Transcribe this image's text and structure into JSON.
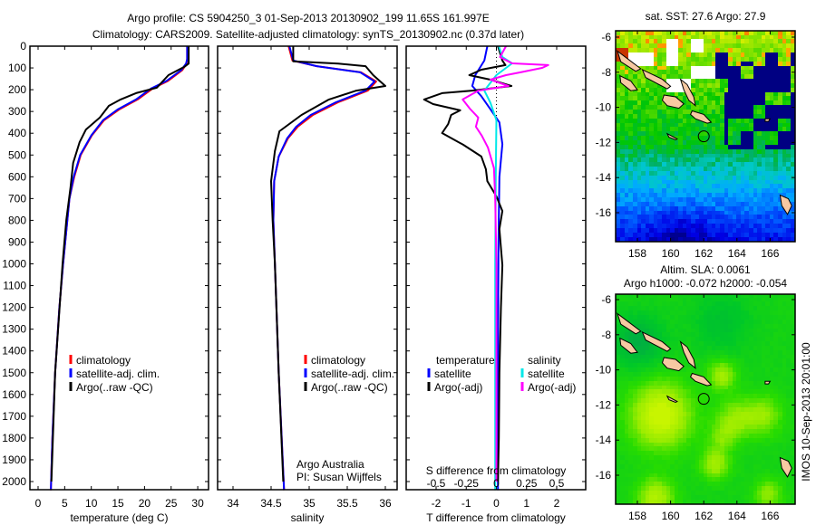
{
  "title": {
    "line1": "Argo profile: CS 5904250_3 01-Sep-2013 20130902_199 11.65S 161.997E",
    "line2": "Climatology: CARS2009. Satellite-adjusted climatology: synTS_20130902.nc (0.37d later)"
  },
  "depth_ticks": [
    "0",
    "100",
    "200",
    "300",
    "400",
    "500",
    "600",
    "700",
    "800",
    "900",
    "1000",
    "1100",
    "1200",
    "1300",
    "1400",
    "1500",
    "1600",
    "1700",
    "1800",
    "1900",
    "2000"
  ],
  "legend_profiles": {
    "climatology": "climatology",
    "satellite": "satellite-adj. clim.",
    "argo": "Argo(..raw -QC)"
  },
  "legend_diff": {
    "temperature": "temperature",
    "salinity": "salinity",
    "t_satellite": "satellite",
    "t_argo": "Argo(-adj)",
    "s_satellite": "satellite",
    "s_argo": "Argo(-adj)"
  },
  "credits": {
    "line1": "Argo Australia",
    "line2": "PI: Susan Wijffels"
  },
  "timestamp": "IMOS 10-Sep-2013 20:01:00",
  "colors": {
    "climatology": "#ff0000",
    "satellite": "#0000ff",
    "argo": "#000000",
    "s_satellite": "#00e8e8",
    "s_argo": "#ff00ff",
    "land": "#f7c9a2"
  },
  "maps": {
    "sst": {
      "title": "sat. SST: 27.6 Argo: 27.9"
    },
    "sla": {
      "title1": "Altim. SLA: 0.0061",
      "title2": "Argo h1000: -0.072 h2000: -0.054"
    },
    "lon_ticks": [
      "158",
      "160",
      "162",
      "164",
      "166"
    ],
    "lat_ticks": [
      "-6",
      "-8",
      "-10",
      "-12",
      "-14",
      "-16"
    ],
    "profile_location": {
      "lon": 162.0,
      "lat": -11.65
    }
  },
  "chart_data": [
    {
      "type": "line",
      "title": "",
      "xlabel": "temperature (deg C)",
      "ylabel": "",
      "xlim": [
        -1.5,
        32
      ],
      "ylim": [
        2037,
        0
      ],
      "xticks": [
        "0",
        "5",
        "10",
        "15",
        "20",
        "25",
        "30"
      ],
      "series": [
        {
          "name": "climatology",
          "depth": [
            0,
            60,
            80,
            110,
            160,
            195,
            245,
            290,
            340,
            410,
            500,
            600,
            700,
            850,
            1000,
            1200,
            1500,
            1800,
            2040
          ],
          "values": [
            28.0,
            28.0,
            27.9,
            27.1,
            24.4,
            21.5,
            18.7,
            15.3,
            12.4,
            10.1,
            8.0,
            6.8,
            5.9,
            5.3,
            4.7,
            4.0,
            3.2,
            2.7,
            2.4
          ]
        },
        {
          "name": "satellite-adj. clim.",
          "depth": [
            0,
            60,
            80,
            110,
            160,
            195,
            245,
            290,
            340,
            410,
            500,
            600,
            700,
            850,
            1000,
            1200,
            1500,
            1800,
            2040
          ],
          "values": [
            28.0,
            28.0,
            27.8,
            26.9,
            24.1,
            21.2,
            18.4,
            15.0,
            12.2,
            10.0,
            7.9,
            6.7,
            5.9,
            5.3,
            4.7,
            4.0,
            3.2,
            2.7,
            2.4
          ]
        },
        {
          "name": "Argo(..raw -QC)",
          "depth": [
            0,
            80,
            95,
            133,
            191,
            216,
            245,
            274,
            328,
            383,
            441,
            536,
            648,
            800,
            1000,
            1500,
            2000
          ],
          "values": [
            28.3,
            28.3,
            27.5,
            24.5,
            22.3,
            18.4,
            15.5,
            13.3,
            11.6,
            9.0,
            7.8,
            6.6,
            6.1,
            5.3,
            4.6,
            3.2,
            2.5
          ]
        }
      ]
    },
    {
      "type": "line",
      "title": "",
      "xlabel": "salinity",
      "ylabel": "",
      "xlim": [
        33.8,
        36.15
      ],
      "ylim": [
        2037,
        0
      ],
      "xticks": [
        "34",
        "34.5",
        "35",
        "35.5",
        "36"
      ],
      "series": [
        {
          "name": "climatology",
          "depth": [
            0,
            66,
            92,
            120,
            162,
            204,
            258,
            316,
            370,
            424,
            507,
            620,
            800,
            1000,
            1500,
            2040
          ],
          "values": [
            34.73,
            34.78,
            35.1,
            35.68,
            35.88,
            35.77,
            35.38,
            35.05,
            34.85,
            34.72,
            34.6,
            34.54,
            34.53,
            34.55,
            34.6,
            34.67
          ]
        },
        {
          "name": "satellite-adj. clim.",
          "depth": [
            0,
            66,
            92,
            120,
            162,
            204,
            258,
            316,
            370,
            424,
            507,
            620,
            800,
            1000,
            1500,
            2040
          ],
          "values": [
            34.74,
            34.79,
            35.1,
            35.67,
            35.86,
            35.74,
            35.35,
            35.02,
            34.83,
            34.71,
            34.6,
            34.54,
            34.53,
            34.55,
            34.6,
            34.67
          ]
        },
        {
          "name": "Argo(..raw -QC)",
          "depth": [
            0,
            70,
            80,
            92,
            133,
            183,
            204,
            245,
            316,
            391,
            482,
            620,
            800,
            1000,
            1500,
            2000
          ],
          "values": [
            34.79,
            34.79,
            35.38,
            35.74,
            35.84,
            36.0,
            35.62,
            35.26,
            34.9,
            34.61,
            34.55,
            34.5,
            34.52,
            34.55,
            34.6,
            34.66
          ]
        }
      ]
    },
    {
      "type": "line",
      "title": "",
      "xlabel": "T difference from climatology",
      "x2label": "S difference from climatology",
      "ylabel": "",
      "xlim": [
        -3,
        2.96
      ],
      "x2lim": [
        -0.75,
        0.74
      ],
      "ylim": [
        2037,
        0
      ],
      "xticks": [
        "-2",
        "-1",
        "0",
        "1",
        "2"
      ],
      "x2ticks": [
        "-0.5",
        "-0.25",
        "0",
        "0.25",
        "0.5"
      ],
      "series": [
        {
          "name": "temperature satellite",
          "axis": "T",
          "depth": [
            0,
            66,
            133,
            183,
            230,
            290,
            350,
            450,
            600,
            900,
            1500,
            2040
          ],
          "values": [
            -0.3,
            -0.4,
            -0.7,
            -0.8,
            -0.5,
            -0.2,
            0.1,
            0.2,
            0.1,
            0.07,
            0.05,
            0.05
          ]
        },
        {
          "name": "temperature Argo(-adj)",
          "axis": "T",
          "depth": [
            0,
            66,
            87,
            108,
            133,
            154,
            183,
            204,
            216,
            245,
            266,
            295,
            316,
            358,
            399,
            453,
            507,
            565,
            620,
            690,
            757,
            840,
            1006,
            1200,
            1500,
            1800,
            2000
          ],
          "values": [
            0.05,
            0.2,
            0.3,
            -0.5,
            -0.9,
            -0.2,
            0.5,
            -0.8,
            -1.8,
            -2.4,
            -2.1,
            -1.2,
            -1.5,
            -1.6,
            -1.8,
            -1.1,
            -0.5,
            -0.35,
            -0.3,
            0.0,
            0.2,
            0.1,
            0.2,
            0.15,
            0.1,
            0.08,
            0.05
          ]
        },
        {
          "name": "salinity satellite",
          "axis": "S",
          "depth": [
            0,
            50,
            79,
            133,
            204,
            260,
            340,
            600,
            1000,
            2040
          ],
          "values": [
            0.02,
            0.05,
            0.13,
            0.0,
            -0.1,
            -0.05,
            0,
            -0.005,
            -0.01,
            -0.01
          ]
        },
        {
          "name": "salinity Argo(-adj)",
          "axis": "S",
          "depth": [
            0,
            50,
            79,
            87,
            100,
            120,
            133,
            154,
            183,
            204,
            245,
            287,
            328,
            370,
            412,
            466,
            560,
            700,
            1000,
            2000
          ],
          "values": [
            0.08,
            0.03,
            0.13,
            0.43,
            0.38,
            0.2,
            0.08,
            -0.05,
            0.1,
            -0.15,
            -0.28,
            -0.22,
            -0.15,
            -0.17,
            -0.12,
            -0.07,
            -0.02,
            -0.01,
            0,
            0
          ]
        }
      ]
    }
  ]
}
